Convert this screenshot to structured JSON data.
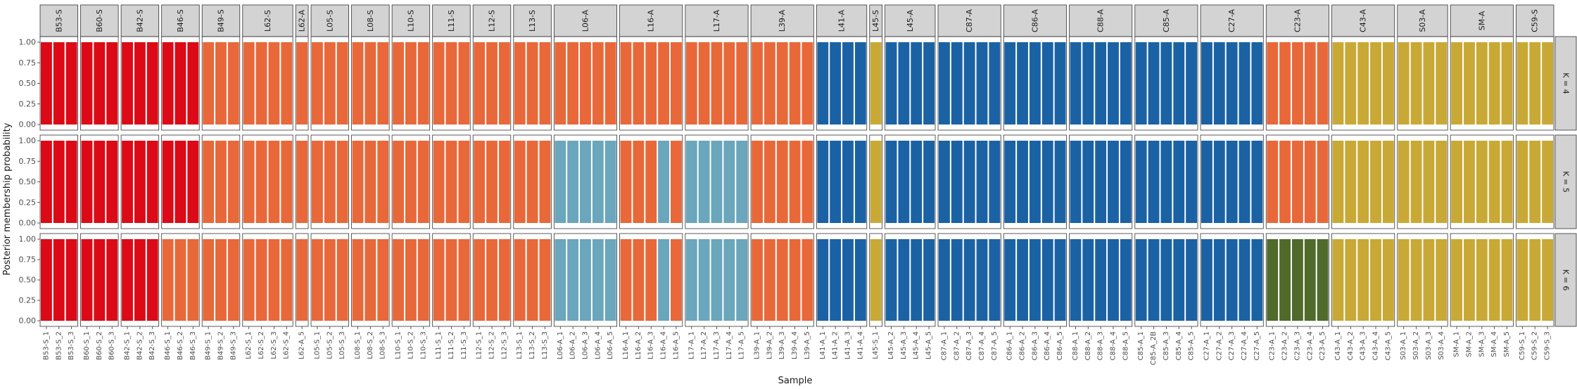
{
  "chart_data": {
    "type": "bar",
    "stacked": true,
    "ylabel": "Posterior membership probability",
    "xlabel": "Sample",
    "ylim": [
      0,
      1
    ],
    "yticks": [
      "0.00",
      "0.25",
      "0.50",
      "0.75",
      "1.00"
    ],
    "grid": false,
    "legend": "none",
    "facet_rows": [
      "K = 4",
      "K = 5",
      "K = 6"
    ],
    "colors": {
      "red": "#DC0A16",
      "orange": "#E8683A",
      "lightblue": "#6AA6BC",
      "blue": "#1B62A5",
      "gold": "#C9A935",
      "olive": "#4F6A2A",
      "strip_fill": "#D3D3D3",
      "panel_border": "#333333"
    },
    "groups": [
      {
        "name": "B53-S",
        "samples": [
          "B53-S_1",
          "B53-S_2",
          "B53-S_3"
        ],
        "clusters": [
          "red",
          "red",
          "red"
        ]
      },
      {
        "name": "B60-S",
        "samples": [
          "B60-S_1",
          "B60-S_2",
          "B60-S_3"
        ],
        "clusters": [
          "red",
          "red",
          "red"
        ]
      },
      {
        "name": "B42-S",
        "samples": [
          "B42-S_1",
          "B42-S_2",
          "B42-S_3"
        ],
        "clusters": [
          "red",
          "red",
          "red"
        ]
      },
      {
        "name": "B46-S",
        "samples": [
          "B46-S_1",
          "B46-S_2",
          "B46-S_3"
        ],
        "clusters": [
          "red",
          "red",
          "orange"
        ]
      },
      {
        "name": "B49-S",
        "samples": [
          "B49-S_1",
          "B49-S_2",
          "B49-S_3"
        ],
        "clusters": [
          "orange",
          "orange",
          "orange"
        ]
      },
      {
        "name": "L62-S",
        "samples": [
          "L62-S_1",
          "L62-S_2",
          "L62-S_3",
          "L62-S_4"
        ],
        "clusters": [
          "orange",
          "orange",
          "orange"
        ]
      },
      {
        "name": "L62-A",
        "samples": [
          "L62-A_5"
        ],
        "clusters": [
          "orange",
          "orange",
          "orange"
        ]
      },
      {
        "name": "L05-S",
        "samples": [
          "L05-S_1",
          "L05-S_2",
          "L05-S_3"
        ],
        "clusters": [
          "orange",
          "orange",
          "orange"
        ]
      },
      {
        "name": "L08-S",
        "samples": [
          "L08-S_1",
          "L08-S_2",
          "L08-S_3"
        ],
        "clusters": [
          "orange",
          "orange",
          "orange"
        ]
      },
      {
        "name": "L10-S",
        "samples": [
          "L10-S_1",
          "L10-S_2",
          "L10-S_3"
        ],
        "clusters": [
          "orange",
          "orange",
          "orange"
        ]
      },
      {
        "name": "L11-S",
        "samples": [
          "L11-S_1",
          "L11-S_2",
          "L11-S_3"
        ],
        "clusters": [
          "orange",
          "orange",
          "orange"
        ]
      },
      {
        "name": "L12-S",
        "samples": [
          "L12-S_1",
          "L12-S_2",
          "L12-S_3"
        ],
        "clusters": [
          "orange",
          "orange",
          "orange"
        ]
      },
      {
        "name": "L13-S",
        "samples": [
          "L13-S_1",
          "L13-S_2",
          "L13-S_3"
        ],
        "clusters": [
          "orange",
          "orange",
          "orange"
        ]
      },
      {
        "name": "L06-A",
        "samples": [
          "L06-A_1",
          "L06-A_2",
          "L06-A_3",
          "L06-A_4",
          "L06-A_5"
        ],
        "clusters": [
          "orange",
          "lightblue",
          "lightblue"
        ]
      },
      {
        "name": "L16-A",
        "samples": [
          "L16-A_1",
          "L16-A_2",
          "L16-A_3",
          "L16-A_4",
          "L16-A_5"
        ],
        "clusters": [
          "orange",
          "orange",
          "orange"
        ],
        "overrides": {
          "1": {
            "3": "lightblue",
            "4": "orange"
          },
          "2": {
            "3": "lightblue",
            "4": "orange"
          }
        }
      },
      {
        "name": "L17-A",
        "samples": [
          "L17-A_1",
          "L17-A_2",
          "L17-A_3",
          "L17-A_4",
          "L17-A_5"
        ],
        "clusters": [
          "orange",
          "lightblue",
          "lightblue"
        ]
      },
      {
        "name": "L39-A",
        "samples": [
          "L39-A_1",
          "L39-A_2",
          "L39-A_3",
          "L39-A_4",
          "L39-A_5"
        ],
        "clusters": [
          "orange",
          "orange",
          "orange"
        ]
      },
      {
        "name": "L41-A",
        "samples": [
          "L41-A_1",
          "L41-A_2",
          "L41-A_3",
          "L41-A_4"
        ],
        "clusters": [
          "blue",
          "blue",
          "blue"
        ]
      },
      {
        "name": "L45-S",
        "samples": [
          "L45-S_1"
        ],
        "clusters": [
          "gold",
          "gold",
          "gold"
        ]
      },
      {
        "name": "L45-A",
        "samples": [
          "L45-A_2",
          "L45-A_3",
          "L45-A_4",
          "L45-A_5"
        ],
        "clusters": [
          "blue",
          "blue",
          "blue"
        ]
      },
      {
        "name": "C87-A",
        "samples": [
          "C87-A_1",
          "C87-A_2",
          "C87-A_3",
          "C87-A_4",
          "C87-A_5"
        ],
        "clusters": [
          "blue",
          "blue",
          "blue"
        ]
      },
      {
        "name": "C86-A",
        "samples": [
          "C86-A_1",
          "C86-A_2",
          "C86-A_3",
          "C86-A_4",
          "C86-A_5"
        ],
        "clusters": [
          "blue",
          "blue",
          "blue"
        ]
      },
      {
        "name": "C88-A",
        "samples": [
          "C88-A_1",
          "C88-A_2",
          "C88-A_3",
          "C88-A_4",
          "C88-A_5"
        ],
        "clusters": [
          "blue",
          "blue",
          "blue"
        ]
      },
      {
        "name": "C85-A",
        "samples": [
          "C85-A_1",
          "C85-A_2B",
          "C85-A_3",
          "C85-A_4",
          "C85-A_5"
        ],
        "clusters": [
          "blue",
          "blue",
          "blue"
        ]
      },
      {
        "name": "C27-A",
        "samples": [
          "C27-A_1",
          "C27-A_2",
          "C27-A_3",
          "C27-A_4",
          "C27-A_5"
        ],
        "clusters": [
          "blue",
          "blue",
          "blue"
        ]
      },
      {
        "name": "C23-A",
        "samples": [
          "C23-A_1",
          "C23-A_2",
          "C23-A_3",
          "C23-A_4",
          "C23-A_5"
        ],
        "clusters": [
          "orange",
          "orange",
          "olive"
        ]
      },
      {
        "name": "C43-A",
        "samples": [
          "C43-A_1",
          "C43-A_2",
          "C43-A_3",
          "C43-A_4",
          "C43-A_5"
        ],
        "clusters": [
          "gold",
          "gold",
          "gold"
        ]
      },
      {
        "name": "S03-A",
        "samples": [
          "S03-A_1",
          "S03-A_2",
          "S03-A_3",
          "S03-A_4"
        ],
        "clusters": [
          "gold",
          "gold",
          "gold"
        ]
      },
      {
        "name": "SM-A",
        "samples": [
          "SM-A_1",
          "SM-A_2",
          "SM-A_3",
          "SM-A_4",
          "SM-A_5"
        ],
        "clusters": [
          "gold",
          "gold",
          "gold"
        ]
      },
      {
        "name": "C59-S",
        "samples": [
          "C59-S_1",
          "C59-S_2",
          "C59-S_3"
        ],
        "clusters": [
          "gold",
          "gold",
          "gold"
        ]
      }
    ]
  }
}
